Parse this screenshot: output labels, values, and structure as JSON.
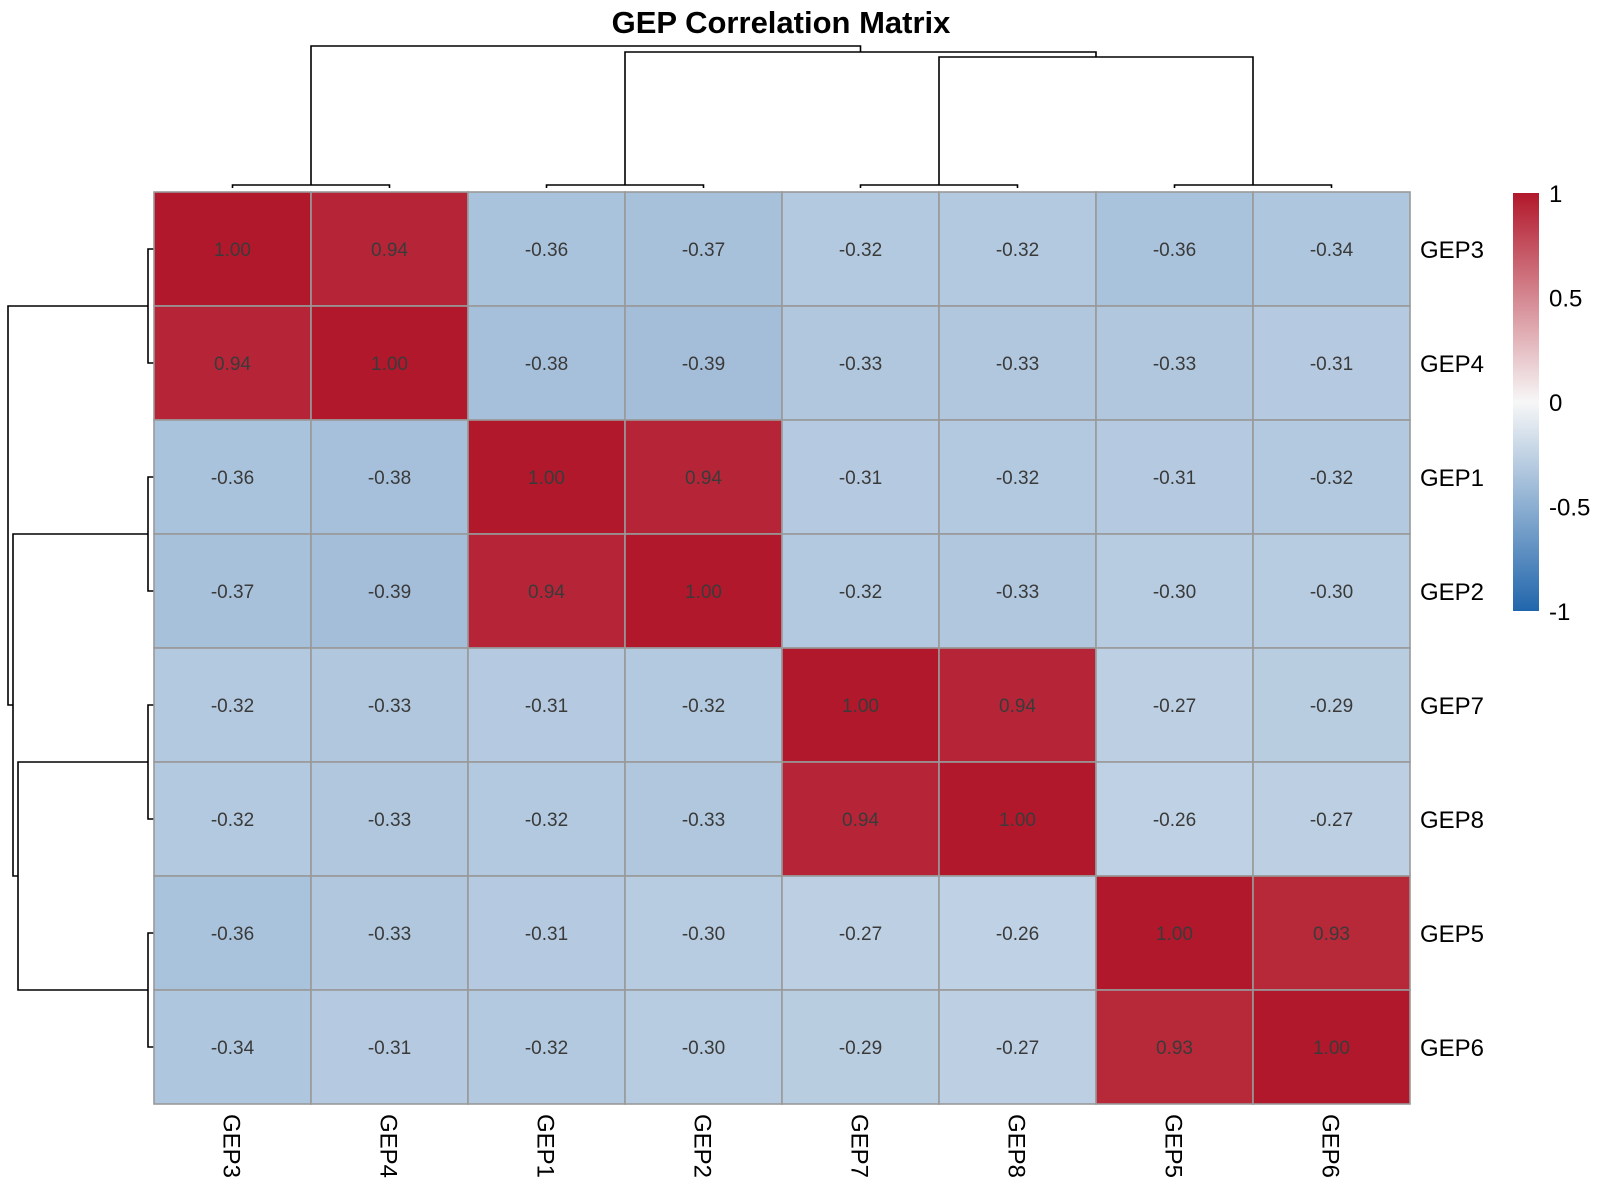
{
  "chart_data": {
    "type": "heatmap",
    "title": "GEP Correlation Matrix",
    "rows": [
      "GEP3",
      "GEP4",
      "GEP1",
      "GEP2",
      "GEP7",
      "GEP8",
      "GEP5",
      "GEP6"
    ],
    "columns": [
      "GEP3",
      "GEP4",
      "GEP1",
      "GEP2",
      "GEP7",
      "GEP8",
      "GEP5",
      "GEP6"
    ],
    "values": [
      [
        1.0,
        0.94,
        -0.36,
        -0.37,
        -0.32,
        -0.32,
        -0.36,
        -0.34
      ],
      [
        0.94,
        1.0,
        -0.38,
        -0.39,
        -0.33,
        -0.33,
        -0.33,
        -0.31
      ],
      [
        -0.36,
        -0.38,
        1.0,
        0.94,
        -0.31,
        -0.32,
        -0.31,
        -0.32
      ],
      [
        -0.37,
        -0.39,
        0.94,
        1.0,
        -0.32,
        -0.33,
        -0.3,
        -0.3
      ],
      [
        -0.32,
        -0.33,
        -0.31,
        -0.32,
        1.0,
        0.94,
        -0.27,
        -0.29
      ],
      [
        -0.32,
        -0.33,
        -0.32,
        -0.33,
        0.94,
        1.0,
        -0.26,
        -0.27
      ],
      [
        -0.36,
        -0.33,
        -0.31,
        -0.3,
        -0.27,
        -0.26,
        1.0,
        0.93
      ],
      [
        -0.34,
        -0.31,
        -0.32,
        -0.3,
        -0.29,
        -0.27,
        0.93,
        1.0
      ]
    ],
    "cell_labels": [
      [
        "1.00",
        "0.94",
        "-0.36",
        "-0.37",
        "-0.32",
        "-0.32",
        "-0.36",
        "-0.34"
      ],
      [
        "0.94",
        "1.00",
        "-0.38",
        "-0.39",
        "-0.33",
        "-0.33",
        "-0.33",
        "-0.31"
      ],
      [
        "-0.36",
        "-0.38",
        "1.00",
        "0.94",
        "-0.31",
        "-0.32",
        "-0.31",
        "-0.32"
      ],
      [
        "-0.37",
        "-0.39",
        "0.94",
        "1.00",
        "-0.32",
        "-0.33",
        "-0.30",
        "-0.30"
      ],
      [
        "-0.32",
        "-0.33",
        "-0.31",
        "-0.32",
        "1.00",
        "0.94",
        "-0.27",
        "-0.29"
      ],
      [
        "-0.32",
        "-0.33",
        "-0.32",
        "-0.33",
        "0.94",
        "1.00",
        "-0.26",
        "-0.27"
      ],
      [
        "-0.36",
        "-0.33",
        "-0.31",
        "-0.30",
        "-0.27",
        "-0.26",
        "1.00",
        "0.93"
      ],
      [
        "-0.34",
        "-0.31",
        "-0.32",
        "-0.30",
        "-0.29",
        "-0.27",
        "0.93",
        "1.00"
      ]
    ],
    "color_scale": {
      "range": [
        -1,
        1
      ],
      "low_color": "#2166ac",
      "mid_color": "#f7f7f7",
      "high_color": "#b2182b",
      "ticks": [
        1,
        0.5,
        0,
        -0.5,
        -1
      ],
      "tick_labels": [
        "1",
        "0.5",
        "0",
        "-0.5",
        "-1"
      ]
    },
    "cell_border_color": "#999999",
    "legend_position": "right",
    "dendrograms": {
      "columns": "top",
      "rows": "left"
    }
  }
}
